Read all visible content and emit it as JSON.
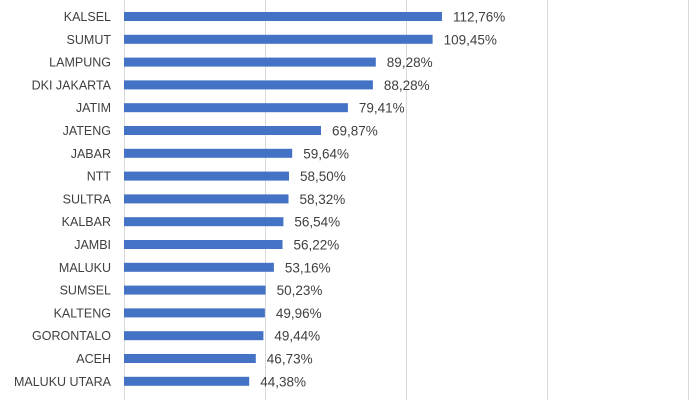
{
  "chart_data": {
    "type": "bar",
    "orientation": "horizontal",
    "categories": [
      "KALSEL",
      "SUMUT",
      "LAMPUNG",
      "DKI JAKARTA",
      "JATIM",
      "JATENG",
      "JABAR",
      "NTT",
      "SULTRA",
      "KALBAR",
      "JAMBI",
      "MALUKU",
      "SUMSEL",
      "KALTENG",
      "GORONTALO",
      "ACEH",
      "MALUKU UTARA"
    ],
    "values": [
      112.76,
      109.45,
      89.28,
      88.28,
      79.41,
      69.87,
      59.64,
      58.5,
      58.32,
      56.54,
      56.22,
      53.16,
      50.23,
      49.96,
      49.44,
      46.73,
      44.38
    ],
    "value_labels": [
      "112,76%",
      "109,45%",
      "89,28%",
      "88,28%",
      "79,41%",
      "69,87%",
      "59,64%",
      "58,50%",
      "58,32%",
      "56,54%",
      "56,22%",
      "53,16%",
      "50,23%",
      "49,96%",
      "49,44%",
      "46,73%",
      "44,38%"
    ],
    "xlim": [
      0,
      200
    ],
    "grid": true,
    "bar_color": "#4472c4",
    "title": "",
    "xlabel": "",
    "ylabel": ""
  }
}
